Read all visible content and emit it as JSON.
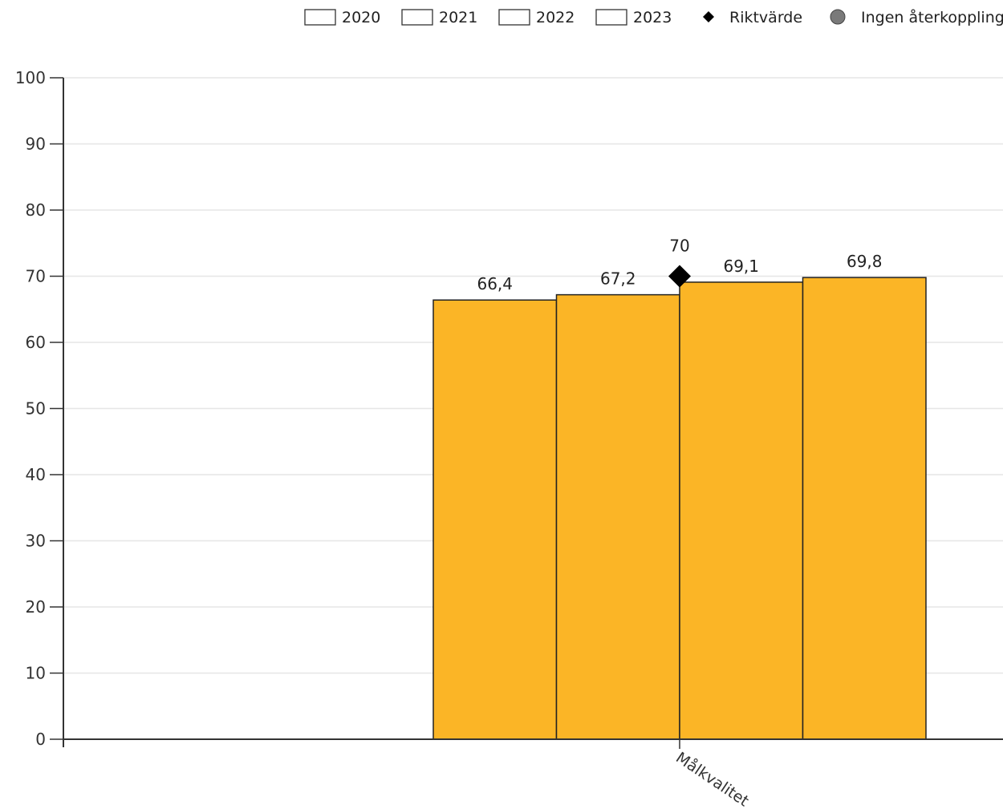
{
  "chart_data": {
    "type": "bar",
    "categories": [
      "Målkvalitet"
    ],
    "series": [
      {
        "name": "2020",
        "values": [
          66.4
        ],
        "label": "66,4"
      },
      {
        "name": "2021",
        "values": [
          67.2
        ],
        "label": "67,2"
      },
      {
        "name": "2022",
        "values": [
          69.1
        ],
        "label": "69,1"
      },
      {
        "name": "2023",
        "values": [
          69.8
        ],
        "label": "69,8"
      }
    ],
    "target": {
      "name": "Riktvärde",
      "value": 70,
      "label": "70"
    },
    "no_feedback": {
      "name": "Ingen återkoppling"
    },
    "ylim": [
      0,
      100
    ],
    "yticks": [
      "0",
      "10",
      "20",
      "30",
      "40",
      "50",
      "60",
      "70",
      "80",
      "90",
      "100"
    ],
    "grid": true,
    "legend_position": "top",
    "colors": {
      "bar": "#fbb526",
      "bar_stroke": "#222222",
      "legend_box": "#ffffff",
      "target": "#000000",
      "no_feedback": "#7a7a7a",
      "grid": "#e6e6e6",
      "axis": "#333333"
    }
  }
}
